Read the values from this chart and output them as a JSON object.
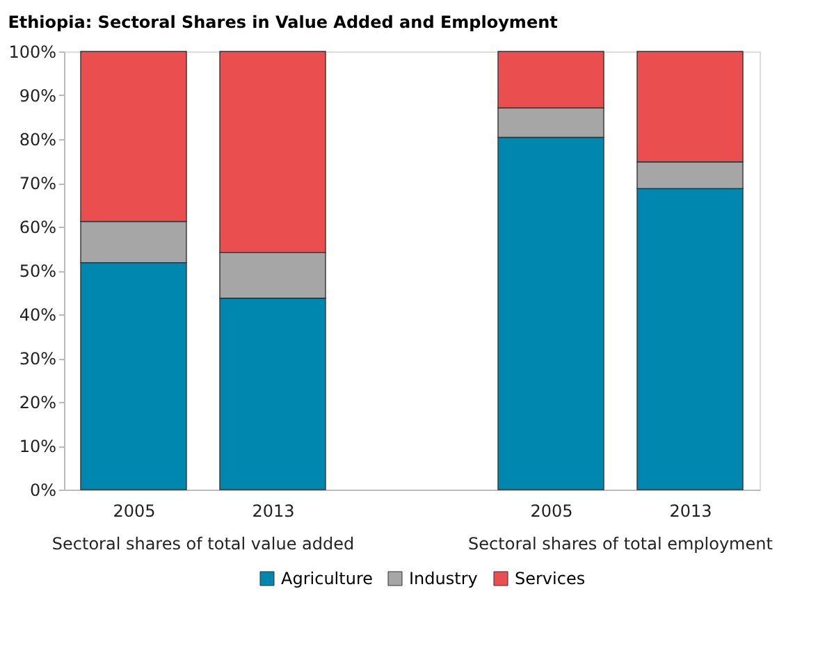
{
  "chart_data": {
    "type": "bar",
    "stacked": true,
    "title": "Ethiopia: Sectoral Shares in Value Added and Employment",
    "categories": [
      "2005",
      "2013",
      null,
      "2005",
      "2013"
    ],
    "series": [
      {
        "name": "Agriculture",
        "color": "#0087b0",
        "values": [
          51.8,
          43.7,
          null,
          80.4,
          68.7
        ]
      },
      {
        "name": "Industry",
        "color": "#a6a6a6",
        "values": [
          9.4,
          10.4,
          null,
          6.7,
          6.1
        ]
      },
      {
        "name": "Services",
        "color": "#ea4e4e",
        "values": [
          38.8,
          45.9,
          null,
          12.9,
          25.2
        ]
      }
    ],
    "ylim": [
      0,
      100
    ],
    "yticks": [
      {
        "value": 0,
        "label": "0%"
      },
      {
        "value": 10,
        "label": "10%"
      },
      {
        "value": 20,
        "label": "20%"
      },
      {
        "value": 30,
        "label": "30%"
      },
      {
        "value": 40,
        "label": "40%"
      },
      {
        "value": 50,
        "label": "50%"
      },
      {
        "value": 60,
        "label": "60%"
      },
      {
        "value": 70,
        "label": "70%"
      },
      {
        "value": 80,
        "label": "80%"
      },
      {
        "value": 90,
        "label": "90%"
      },
      {
        "value": 100,
        "label": "100%"
      }
    ],
    "annotations": [
      "Sectoral shares of total value added",
      "Sectoral shares of total employment"
    ],
    "grid": false,
    "legend": "bottom"
  }
}
